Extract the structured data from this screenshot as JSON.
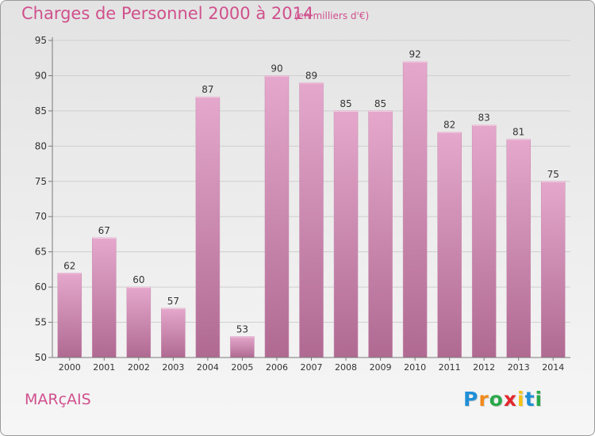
{
  "header": {
    "title": "Charges de Personnel 2000 à 2014",
    "subtitle": "(en milliers d'€)"
  },
  "footer": {
    "commune": "MARçAIS",
    "logo_letters": [
      "P",
      "r",
      "o",
      "x",
      "i",
      "t",
      "i"
    ],
    "logo_colors": [
      "#1f8fd6",
      "#f08a1c",
      "#2aa84a",
      "#e2282d",
      "#f4c313",
      "#1f8fd6",
      "#2aa84a"
    ]
  },
  "chart_data": {
    "type": "bar",
    "categories": [
      "2000",
      "2001",
      "2002",
      "2003",
      "2004",
      "2005",
      "2006",
      "2007",
      "2008",
      "2009",
      "2010",
      "2011",
      "2012",
      "2013",
      "2014"
    ],
    "values": [
      62,
      67,
      60,
      57,
      87,
      53,
      90,
      89,
      85,
      85,
      92,
      82,
      83,
      81,
      75
    ],
    "title": "Charges de Personnel 2000 à 2014",
    "ylim": [
      50,
      95
    ],
    "yticks": [
      50,
      55,
      60,
      65,
      70,
      75,
      80,
      85,
      90,
      95
    ],
    "grid": true,
    "bar_color_top": "#e5a8cc",
    "bar_color_bottom": "#b06a92",
    "axis_color": "#7a7a7a",
    "grid_color": "#cfcfcf",
    "label_color": "#333333"
  }
}
